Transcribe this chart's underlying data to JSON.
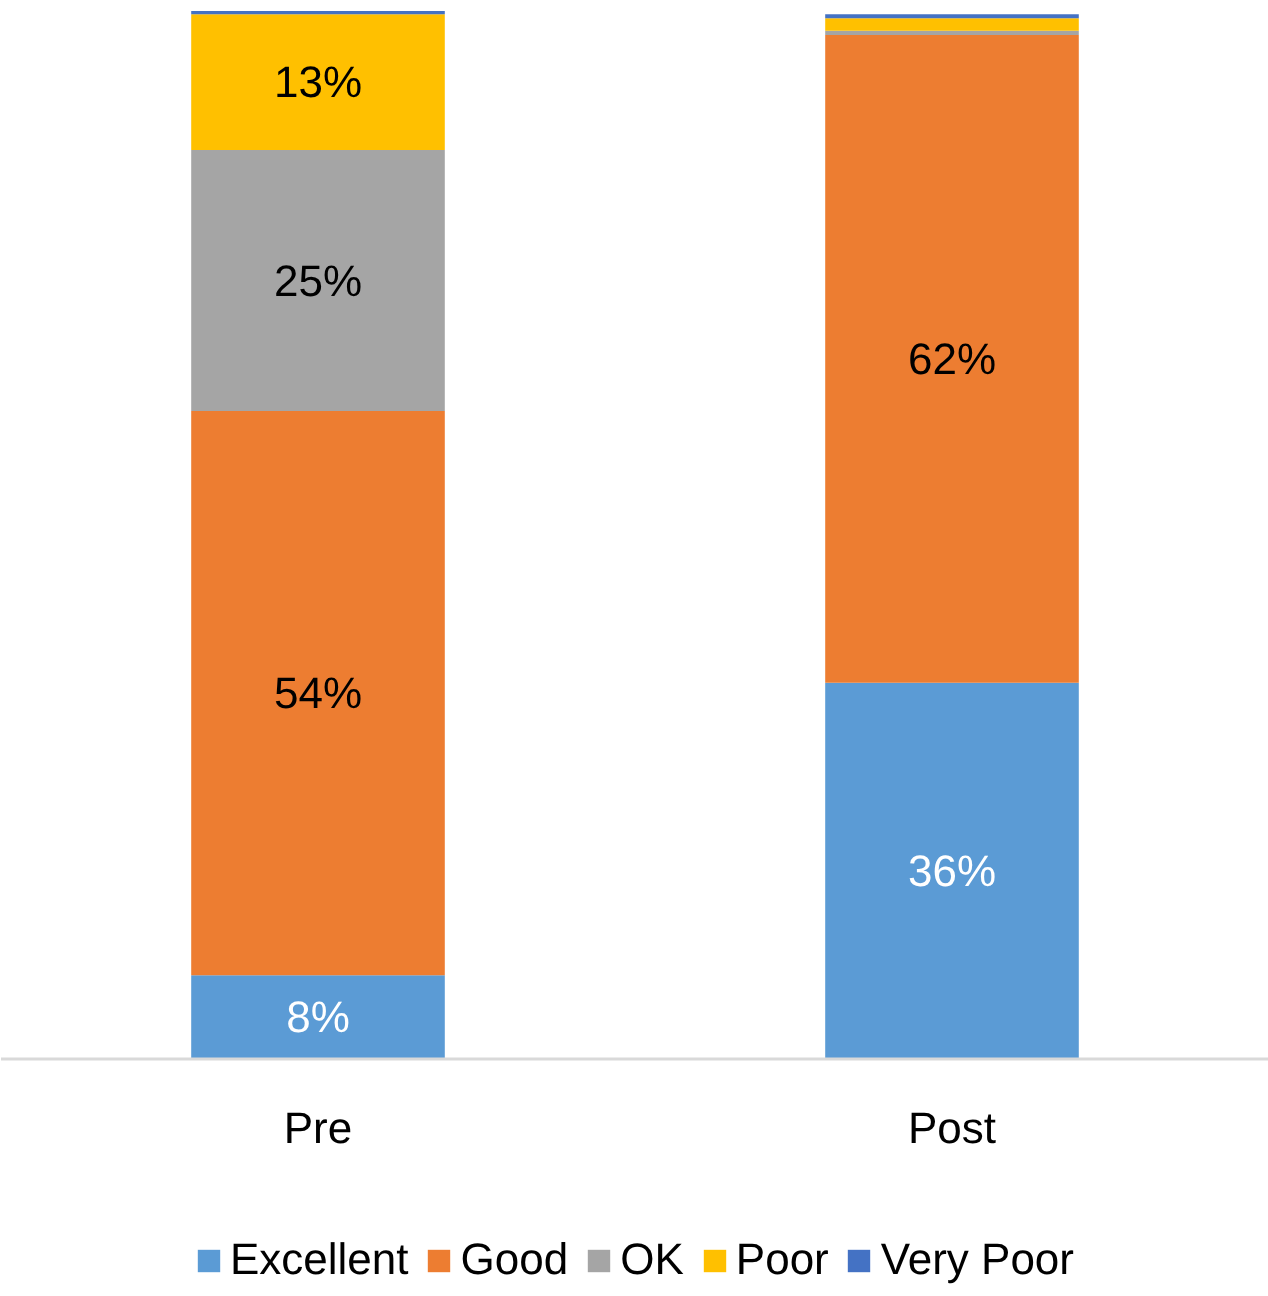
{
  "chart_data": {
    "type": "bar",
    "stacked": true,
    "categories": [
      "Pre",
      "Post"
    ],
    "series": [
      {
        "name": "Excellent",
        "color": "#5b9bd5",
        "values": [
          8,
          36
        ],
        "value_labels": [
          "8%",
          "36%"
        ]
      },
      {
        "name": "Good",
        "color": "#ed7d31",
        "values": [
          54,
          62
        ],
        "value_labels": [
          "54%",
          "62%"
        ]
      },
      {
        "name": "OK",
        "color": "#a5a5a5",
        "values": [
          25,
          0.4
        ],
        "value_labels": [
          "25%",
          null
        ]
      },
      {
        "name": "Poor",
        "color": "#ffc000",
        "values": [
          13,
          1.2
        ],
        "value_labels": [
          "13%",
          null
        ]
      },
      {
        "name": "Very Poor",
        "color": "#4472c4",
        "values": [
          0.3,
          0.4
        ],
        "value_labels": [
          null,
          null
        ]
      }
    ],
    "legend": "bottom",
    "grid": false
  }
}
